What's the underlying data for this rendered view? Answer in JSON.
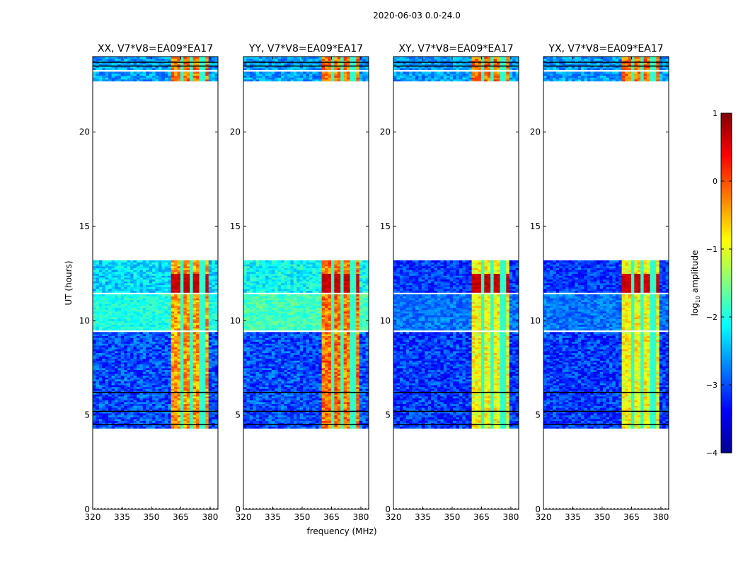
{
  "chart_data": {
    "type": "heatmap",
    "title": "2020-06-03 0.0-24.0",
    "xlabel": "frequency (MHz)",
    "ylabel": "UT (hours)",
    "xlim": [
      320,
      384
    ],
    "ylim": [
      0,
      24
    ],
    "xticks": [
      "320",
      "335",
      "350",
      "365",
      "380"
    ],
    "xtick_values": [
      320,
      335,
      350,
      365,
      380
    ],
    "yticks": [
      "0",
      "5",
      "10",
      "15",
      "20"
    ],
    "ytick_values": [
      0,
      5,
      10,
      15,
      20
    ],
    "colorbar": {
      "label": "log10 amplitude",
      "label_main": "log",
      "label_sub": "10",
      "label_rest": " amplitude",
      "range": [
        -4,
        1
      ],
      "ticks": [
        "1",
        "0",
        "−1",
        "−2",
        "−3",
        "−4"
      ],
      "tick_values": [
        1,
        0,
        -1,
        -2,
        -3,
        -4
      ],
      "colormap": "jet"
    },
    "data_segments_hours": [
      [
        4.3,
        9.4
      ],
      [
        9.5,
        11.4
      ],
      [
        11.5,
        13.2
      ],
      [
        22.7,
        23.2
      ],
      [
        23.3,
        24.0
      ]
    ],
    "flagged_lines_hours": [
      4.5,
      5.2,
      6.2,
      23.5,
      23.7
    ],
    "rfi_band_mhz": [
      360.5,
      380.0
    ],
    "rfi_gaps_mhz": [
      366.0,
      371.0,
      376.0
    ],
    "panels": [
      {
        "title": "XX, V7*V8=EA09*EA17",
        "background_level": -3.0,
        "rfi_level": -0.4,
        "mid_band_level": -2.0
      },
      {
        "title": "YY, V7*V8=EA09*EA17",
        "background_level": -3.0,
        "rfi_level": -0.2,
        "mid_band_level": -1.8
      },
      {
        "title": "XY, V7*V8=EA09*EA17",
        "background_level": -3.1,
        "rfi_level": -0.9,
        "mid_band_level": -2.8
      },
      {
        "title": "YX, V7*V8=EA09*EA17",
        "background_level": -3.1,
        "rfi_level": -0.9,
        "mid_band_level": -2.8
      }
    ]
  }
}
